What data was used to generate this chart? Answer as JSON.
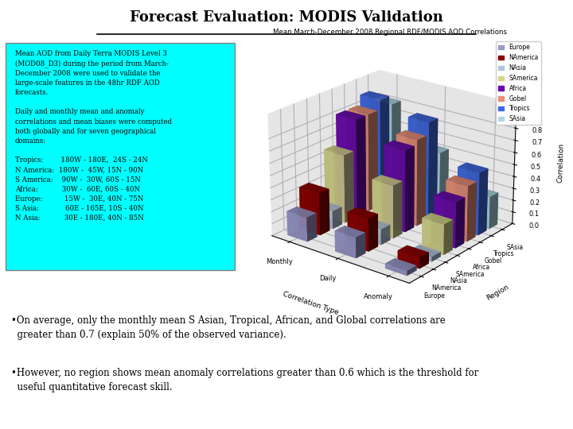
{
  "title": "Forecast Evaluation: MODIS Validation",
  "chart_title": "Mean March-December 2008 Regional RDF/MODIS AOD Correlations",
  "text_box_lines": [
    "Mean AOD from Daily Terra MODIS Level 3",
    "(MOD08_D3) during the period from March-",
    "December 2008 were used to validate the",
    "large-scale features in the 48hr RDF AOD",
    "forecasts.",
    "",
    "Daily and monthly mean and anomaly",
    "correlations and mean biases were computed",
    "both globally and for seven geographical",
    "domains:",
    "",
    "Tropics:        180W - 180E,  24S - 24N",
    "N America:  180W -  45W, 15N - 90N",
    "S America:    90W -  30W, 60S - 15N",
    "Africa:           30W -  60E, 60S - 40N",
    "Europe:          15W -  30E, 40N - 75N",
    "S Asia:            60E - 165E, 10S - 40N",
    "N Asia:           30E - 180E, 40N - 85N"
  ],
  "bullet1": "•On average, only the monthly mean S Asian, Tropical, African, and Global correlations are\n  greater than 0.7 (explain 50% of the observed variance).",
  "bullet2": "•However, no region shows mean anomaly correlations greater than 0.6 which is the threshold for\n  useful quantitative forecast skill.",
  "regions": [
    "Europe",
    "NAmerica",
    "NAsia",
    "SAmerica",
    "Africa",
    "Gobel",
    "Tropics",
    "SAsia"
  ],
  "corr_types": [
    "Monthly",
    "Daily",
    "Anomaly"
  ],
  "data": {
    "Monthly": [
      0.2,
      0.35,
      0.15,
      0.57,
      0.82,
      0.82,
      0.9,
      0.82
    ],
    "Daily": [
      0.17,
      0.27,
      0.13,
      0.44,
      0.68,
      0.72,
      0.82,
      0.52
    ],
    "Anomaly": [
      0.04,
      0.09,
      0.04,
      0.25,
      0.38,
      0.46,
      0.52,
      0.27
    ]
  },
  "bar_colors": [
    "#9999cc",
    "#8b0000",
    "#b0c4de",
    "#d4d48c",
    "#6a0dad",
    "#e8917a",
    "#4169e1",
    "#add8e6"
  ],
  "legend_labels": [
    "Europe",
    "NAmerica",
    "NAsia",
    "SAmerica",
    "Africa",
    "Gobel",
    "Tropics",
    "SAsia"
  ],
  "ylabel": "Correlation",
  "xlabel": "Correlation Type",
  "region_label": "Region",
  "ylim": [
    0,
    1.0
  ],
  "text_box_bg": "#00ffff",
  "slide_bg": "#ffffff",
  "pane_color": "#cccccc"
}
